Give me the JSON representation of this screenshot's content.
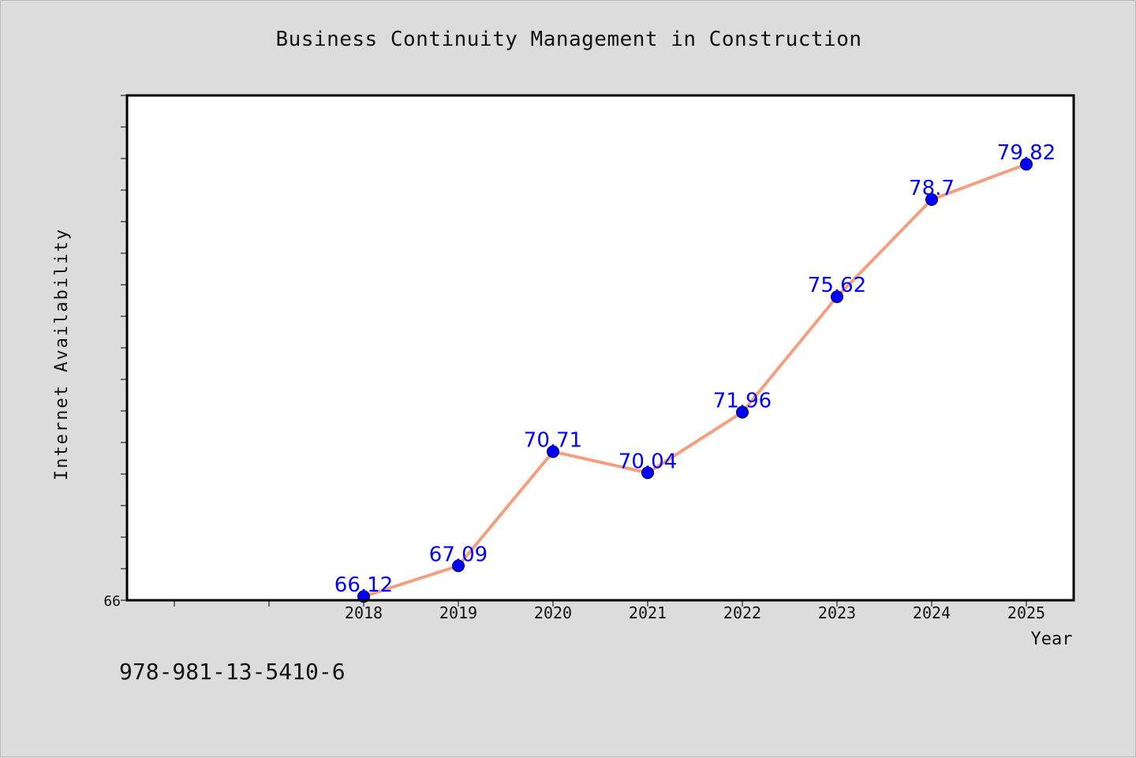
{
  "chart_data": {
    "type": "line",
    "title": "Business Continuity Management in Construction",
    "xlabel": "Year",
    "ylabel": "Internet Availability",
    "categories": [
      "2018",
      "2019",
      "2020",
      "2021",
      "2022",
      "2023",
      "2024",
      "2025"
    ],
    "series": [
      {
        "values": [
          66.12,
          67.09,
          70.71,
          70.04,
          71.96,
          75.62,
          78.7,
          79.82
        ]
      }
    ],
    "data_labels": [
      "66.12",
      "67.09",
      "70.71",
      "70.04",
      "71.96",
      "75.62",
      "78.7",
      "79.82"
    ],
    "ytick_labels": [
      "66"
    ],
    "ylim": [
      66,
      82
    ],
    "grid": false,
    "line_color": "#f4a07f",
    "marker_color": "#0000ff",
    "label_color": "#0000ff"
  },
  "footer": {
    "code": "978-981-13-5410-6"
  }
}
